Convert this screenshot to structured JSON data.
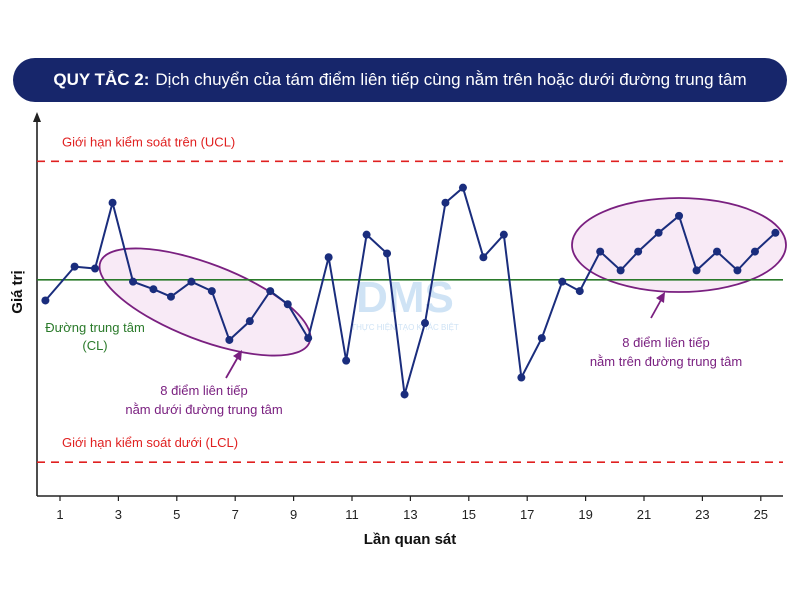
{
  "header": {
    "rule_label": "QUY TẮC 2:",
    "rule_text": "Dịch chuyển của tám điểm liên tiếp cùng nằm trên hoặc dưới đường trung tâm"
  },
  "colors": {
    "banner": "#17266b",
    "series": "#1a2d7d",
    "limits": "#e02020",
    "center": "#2a7a2a",
    "highlight_fill": "#f8eaf6",
    "highlight_stroke": "#7a2080",
    "annotation_text": "#7a2080",
    "watermark": "#cfe3f5"
  },
  "watermark": {
    "logo": "DMS",
    "tagline": "THỰC HIỆN TẠO KHÁC BIỆT"
  },
  "chart_data": {
    "type": "line",
    "title": "",
    "xlabel": "Lần quan sát",
    "ylabel": "Giá trị",
    "xlim": [
      0.2,
      26.2
    ],
    "ylim": [
      0,
      100
    ],
    "xticks": [
      "1",
      "3",
      "5",
      "7",
      "9",
      "11",
      "13",
      "15",
      "17",
      "19",
      "21",
      "23",
      "25"
    ],
    "x": [
      0.5,
      1.5,
      2.2,
      2.8,
      3.5,
      4.2,
      4.8,
      5.5,
      6.2,
      6.8,
      7.5,
      8.2,
      8.8,
      9.5,
      10.2,
      10.8,
      11.5,
      12.2,
      12.8,
      13.5,
      14.2,
      14.8,
      15.5,
      16.2,
      16.8,
      17.5,
      18.2,
      18.8,
      19.5,
      20.2,
      20.8,
      21.5,
      22.2,
      22.8,
      23.5,
      24.2,
      24.8,
      25.5
    ],
    "values": [
      52,
      61,
      60.5,
      78,
      57,
      55,
      53,
      57,
      54.5,
      41.5,
      46.5,
      54.5,
      51,
      42,
      63.5,
      36,
      69.5,
      64.5,
      27,
      46,
      78,
      82,
      63.5,
      69.5,
      31.5,
      42,
      57,
      54.5,
      65,
      60,
      65,
      70,
      74.5,
      60,
      65,
      60,
      65,
      70
    ],
    "series": [
      {
        "name": "",
        "color": "#1a2d7d"
      }
    ],
    "reference_lines": [
      {
        "label": "Giới hạn kiểm soát trên (UCL)",
        "value": 89,
        "style": "dashed",
        "color": "#e02020"
      },
      {
        "label": "Đường trung tâm (CL)",
        "value": 57.5,
        "style": "solid",
        "color": "#2a7a2a"
      },
      {
        "label": "Giới hạn kiểm soát dưới (LCL)",
        "value": 9,
        "style": "dashed",
        "color": "#e02020"
      }
    ],
    "annotations": [
      {
        "text": [
          "8 điểm liên tiếp",
          "nằm dưới đường trung tâm"
        ],
        "points": "3-10"
      },
      {
        "text": [
          "8 điểm liên tiếp",
          "nằm trên đường trung tâm"
        ],
        "points": "19-26"
      }
    ],
    "grid": false,
    "legend": "none"
  }
}
